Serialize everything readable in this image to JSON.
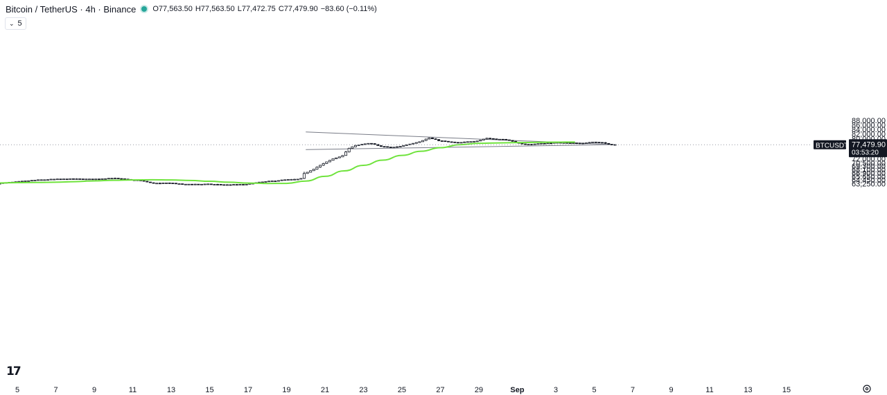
{
  "header": {
    "symbol_title": "Bitcoin / TetherUS · 4h · Binance",
    "open": "O77,563.50",
    "high": "H77,563.50",
    "low": "L77,472.75",
    "close": "C77,479.90",
    "change": "−83.60 (−0.11%)",
    "indicator_count": "5",
    "indicator_icon": "chevron-down-icon"
  },
  "price_badge": {
    "ticker": "BTCUSDT",
    "price": "77,479.90",
    "countdown": "03:53:20"
  },
  "colors": {
    "candle": "#131722",
    "ma_line": "#6fe33c",
    "pattern_lines": "#787b86",
    "badge_bg": "#131722",
    "axis_text": "#131722"
  },
  "chart_data": {
    "type": "candlestick",
    "title": "Bitcoin / TetherUS · 4h · Binance",
    "price_scale": "log",
    "y_ticks": [
      "88,000.00",
      "86,000.00",
      "84,000.00",
      "82,000.00",
      "80,000.00",
      "78,000.00",
      "76,000.00",
      "74,000.00",
      "72,000.00",
      "70,500.00",
      "69,300.00",
      "68,100.00",
      "66,900.00",
      "65,650.00",
      "64,450.00",
      "63,250.00"
    ],
    "x_ticks": [
      "5",
      "7",
      "9",
      "11",
      "13",
      "15",
      "17",
      "19",
      "21",
      "23",
      "25",
      "27",
      "29",
      "Sep",
      "3",
      "5",
      "7",
      "9",
      "11",
      "13",
      "15"
    ],
    "ylim": [
      62900,
      88300
    ],
    "last_price": 77479.9,
    "period_start": "Aug 4",
    "candle_interval_hours": 4,
    "candles": [],
    "moving_average": [
      {
        "x": "Aug 4",
        "y": 63450
      },
      {
        "x": "Aug 5",
        "y": 63560
      },
      {
        "x": "Aug 6",
        "y": 63620
      },
      {
        "x": "Aug 7",
        "y": 63710
      },
      {
        "x": "Aug 8",
        "y": 63900
      },
      {
        "x": "Aug 9",
        "y": 64150
      },
      {
        "x": "Aug 10",
        "y": 64350
      },
      {
        "x": "Aug 11",
        "y": 64480
      },
      {
        "x": "Aug 12",
        "y": 64520
      },
      {
        "x": "Aug 13",
        "y": 64460
      },
      {
        "x": "Aug 14",
        "y": 64300
      },
      {
        "x": "Aug 15",
        "y": 64020
      },
      {
        "x": "Aug 16",
        "y": 63720
      },
      {
        "x": "Aug 17",
        "y": 63430
      },
      {
        "x": "Aug 18",
        "y": 63290
      },
      {
        "x": "Aug 19",
        "y": 63320
      },
      {
        "x": "Aug 20",
        "y": 64100
      },
      {
        "x": "Aug 21",
        "y": 65700
      },
      {
        "x": "Aug 22",
        "y": 67600
      },
      {
        "x": "Aug 23",
        "y": 69600
      },
      {
        "x": "Aug 24",
        "y": 71500
      },
      {
        "x": "Aug 25",
        "y": 73300
      },
      {
        "x": "Aug 26",
        "y": 74900
      },
      {
        "x": "Aug 27",
        "y": 76300
      },
      {
        "x": "Aug 28",
        "y": 77500
      },
      {
        "x": "Aug 29",
        "y": 78100
      },
      {
        "x": "Aug 30",
        "y": 78250
      },
      {
        "x": "Aug 31",
        "y": 78380
      },
      {
        "x": "Sep 1",
        "y": 78550
      },
      {
        "x": "Sep 2",
        "y": 78600
      }
    ],
    "pattern_lines": [
      {
        "name": "upper",
        "from": {
          "x": "Aug 20",
          "y": 82870
        },
        "to": {
          "x": "Sep 4",
          "y": 77560
        }
      },
      {
        "name": "lower",
        "from": {
          "x": "Aug 20",
          "y": 75550
        },
        "to": {
          "x": "Sep 4",
          "y": 77560
        }
      }
    ]
  }
}
